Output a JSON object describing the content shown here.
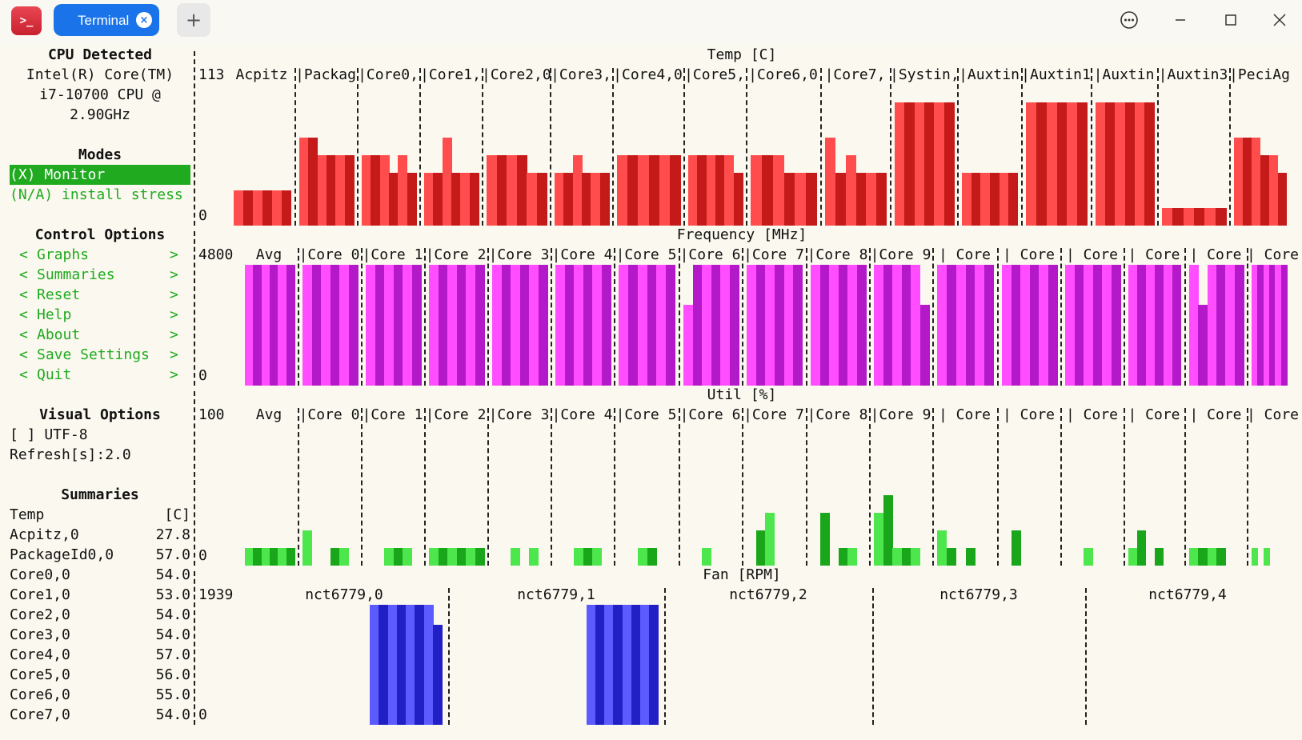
{
  "window": {
    "app_icon": "terminal-icon",
    "tab_label": "Terminal",
    "tab_close_icon": "×",
    "new_tab_icon": "+",
    "menu_icon": "more-icon",
    "minimize_icon": "minimize-icon",
    "maximize_icon": "maximize-icon",
    "close_icon": "close-icon"
  },
  "sidebar": {
    "cpu_header": "CPU Detected",
    "cpu_lines": [
      "Intel(R) Core(TM)",
      "i7-10700 CPU @",
      "2.90GHz"
    ],
    "modes_header": "Modes",
    "mode_monitor": "(X) Monitor",
    "mode_stress": "(N/A) install stress",
    "control_header": "Control Options",
    "controls": [
      "Graphs",
      "Summaries",
      "Reset",
      "Help",
      "About",
      "Save Settings",
      "Quit"
    ],
    "arrow_left": "<",
    "arrow_right": ">",
    "visual_header": "Visual Options",
    "utf8": "[ ] UTF-8",
    "refresh": "Refresh[s]:2.0",
    "summaries_header": "Summaries",
    "summary_title": "Temp",
    "summary_unit": "[C]",
    "summaries": [
      {
        "name": "Acpitz,0",
        "value": "27.8"
      },
      {
        "name": "PackageId0,0",
        "value": "57.0"
      },
      {
        "name": "Core0,0",
        "value": "54.0"
      },
      {
        "name": "Core1,0",
        "value": "53.0"
      },
      {
        "name": "Core2,0",
        "value": "54.0"
      },
      {
        "name": "Core3,0",
        "value": "54.0"
      },
      {
        "name": "Core4,0",
        "value": "57.0"
      },
      {
        "name": "Core5,0",
        "value": "56.0"
      },
      {
        "name": "Core6,0",
        "value": "55.0"
      },
      {
        "name": "Core7,0",
        "value": "54.0"
      }
    ]
  },
  "colors": {
    "temp": [
      "#ff4d4d",
      "#c41a1a"
    ],
    "freq": [
      "#ff4dff",
      "#b319c9"
    ],
    "util": [
      "#4de64d",
      "#1aa61a"
    ],
    "fan": [
      "#5b5bff",
      "#2020c4"
    ],
    "accent": "#1faa1f"
  },
  "graphs": {
    "temp": {
      "title": "Temp [C]",
      "max_label": "113",
      "min_label": "0",
      "max": 8,
      "columns": [
        {
          "label": "Acpitz",
          "values": [
            2,
            2,
            2,
            2,
            2,
            2
          ]
        },
        {
          "label": "|Packag",
          "values": [
            5,
            5,
            4,
            4,
            4,
            4
          ]
        },
        {
          "label": "|Core0,",
          "values": [
            4,
            4,
            4,
            3,
            4,
            3
          ]
        },
        {
          "label": "|Core1,",
          "values": [
            3,
            3,
            5,
            3,
            3,
            3
          ]
        },
        {
          "label": "|Core2,0",
          "values": [
            4,
            4,
            4,
            4,
            3,
            3
          ]
        },
        {
          "label": "|Core3,",
          "values": [
            3,
            3,
            4,
            3,
            3,
            3
          ]
        },
        {
          "label": "|Core4,0",
          "values": [
            4,
            4,
            4,
            4,
            4,
            4
          ]
        },
        {
          "label": "|Core5,",
          "values": [
            4,
            4,
            4,
            4,
            4,
            3
          ]
        },
        {
          "label": "|Core6,0",
          "values": [
            4,
            4,
            4,
            3,
            3,
            3
          ]
        },
        {
          "label": "|Core7,",
          "values": [
            5,
            3,
            4,
            3,
            3,
            3
          ]
        },
        {
          "label": "|Systin,",
          "values": [
            7,
            7,
            7,
            7,
            7,
            7
          ]
        },
        {
          "label": "|Auxtin",
          "values": [
            3,
            3,
            3,
            3,
            3,
            3
          ]
        },
        {
          "label": "|Auxtin1",
          "values": [
            7,
            7,
            7,
            7,
            7,
            7
          ]
        },
        {
          "label": "|Auxtin",
          "values": [
            7,
            7,
            7,
            7,
            7,
            7
          ]
        },
        {
          "label": "|Auxtin3",
          "values": [
            1,
            1,
            1,
            1,
            1,
            1
          ]
        },
        {
          "label": "|PeciAg",
          "values": [
            5,
            5,
            5,
            4,
            4,
            3
          ]
        }
      ]
    },
    "freq": {
      "title": "Frequency [MHz]",
      "max_label": "4800",
      "min_label": "0",
      "max": 6,
      "columns": [
        {
          "label": "Avg",
          "values": [
            6,
            6,
            6,
            6,
            6,
            6
          ]
        },
        {
          "label": "|Core 0",
          "values": [
            6,
            6,
            6,
            6,
            6,
            6
          ]
        },
        {
          "label": "|Core 1",
          "values": [
            6,
            6,
            6,
            6,
            6,
            6
          ]
        },
        {
          "label": "|Core 2",
          "values": [
            6,
            6,
            6,
            6,
            6,
            6
          ]
        },
        {
          "label": "|Core 3",
          "values": [
            6,
            6,
            6,
            6,
            6,
            6
          ]
        },
        {
          "label": "|Core 4",
          "values": [
            6,
            6,
            6,
            6,
            6,
            6
          ]
        },
        {
          "label": "|Core 5",
          "values": [
            6,
            6,
            6,
            6,
            6,
            6
          ]
        },
        {
          "label": "|Core 6",
          "values": [
            4,
            6,
            6,
            6,
            6,
            6
          ]
        },
        {
          "label": "|Core 7",
          "values": [
            6,
            6,
            6,
            6,
            6,
            6
          ]
        },
        {
          "label": "|Core 8",
          "values": [
            6,
            6,
            6,
            6,
            6,
            6
          ]
        },
        {
          "label": "|Core 9",
          "values": [
            6,
            6,
            6,
            6,
            6,
            4
          ]
        },
        {
          "label": "| Core",
          "values": [
            6,
            6,
            6,
            6,
            6,
            6
          ]
        },
        {
          "label": "| Core",
          "values": [
            6,
            6,
            6,
            6,
            6,
            6
          ]
        },
        {
          "label": "| Core",
          "values": [
            6,
            6,
            6,
            6,
            6,
            6
          ]
        },
        {
          "label": "| Core",
          "values": [
            6,
            6,
            6,
            6,
            6,
            6
          ]
        },
        {
          "label": "| Core",
          "values": [
            6,
            4,
            6,
            6,
            6,
            6
          ]
        },
        {
          "label": "| Core",
          "values": [
            6,
            6,
            6,
            6,
            6,
            6
          ]
        }
      ]
    },
    "util": {
      "title": "Util [%]",
      "max_label": "100",
      "min_label": "0",
      "max": 8,
      "columns": [
        {
          "label": "Avg",
          "values": [
            1,
            1,
            1,
            1,
            1,
            1
          ]
        },
        {
          "label": "|Core 0",
          "values": [
            2,
            0,
            0,
            1,
            1,
            0
          ]
        },
        {
          "label": "|Core 1",
          "values": [
            0,
            0,
            1,
            1,
            1,
            0
          ]
        },
        {
          "label": "|Core 2",
          "values": [
            1,
            1,
            1,
            1,
            1,
            1
          ]
        },
        {
          "label": "|Core 3",
          "values": [
            0,
            0,
            1,
            0,
            1,
            0
          ]
        },
        {
          "label": "|Core 4",
          "values": [
            0,
            0,
            1,
            1,
            1,
            0
          ]
        },
        {
          "label": "|Core 5",
          "values": [
            0,
            0,
            1,
            1,
            0,
            0
          ]
        },
        {
          "label": "|Core 6",
          "values": [
            0,
            0,
            1,
            0,
            0,
            0
          ]
        },
        {
          "label": "|Core 7",
          "values": [
            0,
            2,
            3,
            0,
            0,
            0
          ]
        },
        {
          "label": "|Core 8",
          "values": [
            0,
            3,
            0,
            1,
            1,
            0
          ]
        },
        {
          "label": "|Core 9",
          "values": [
            3,
            4,
            1,
            1,
            1,
            0
          ]
        },
        {
          "label": "| Core",
          "values": [
            2,
            1,
            0,
            1,
            0,
            0
          ]
        },
        {
          "label": "| Core",
          "values": [
            0,
            2,
            0,
            0,
            0,
            0
          ]
        },
        {
          "label": "| Core",
          "values": [
            0,
            0,
            1,
            0,
            0,
            0
          ]
        },
        {
          "label": "| Core",
          "values": [
            1,
            2,
            0,
            1,
            0,
            0
          ]
        },
        {
          "label": "| Core",
          "values": [
            1,
            1,
            1,
            1,
            0,
            0
          ]
        },
        {
          "label": "| Core",
          "values": [
            1,
            0,
            1,
            0,
            0,
            0
          ]
        }
      ]
    },
    "fan": {
      "title": "Fan [RPM]",
      "max_label": "1939",
      "min_label": "0",
      "max": 6,
      "columns": [
        {
          "label": "nct6779,0",
          "values": [
            6,
            6,
            6,
            6,
            6,
            6,
            6,
            5
          ]
        },
        {
          "label": "nct6779,1",
          "values": [
            6,
            6,
            6,
            6,
            6,
            6,
            6,
            6
          ]
        },
        {
          "label": "nct6779,2",
          "values": [
            0,
            0,
            0,
            0,
            0,
            0,
            0,
            0
          ]
        },
        {
          "label": "nct6779,3",
          "values": [
            0,
            0,
            0,
            0,
            0,
            0,
            0,
            0
          ]
        },
        {
          "label": "nct6779,4",
          "values": [
            0,
            0,
            0,
            0,
            0,
            0,
            0,
            0
          ]
        }
      ]
    }
  }
}
